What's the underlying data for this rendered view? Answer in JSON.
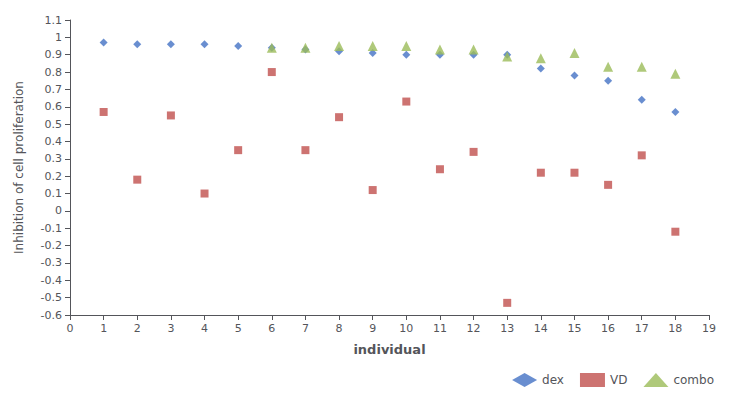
{
  "chart_data": {
    "type": "scatter",
    "xlabel": "individual",
    "ylabel": "Inhibition of cell proliferation",
    "series": [
      {
        "name": "dex",
        "color": "#4472C4",
        "marker": "diamond",
        "x": [
          1,
          2,
          3,
          4,
          5,
          6,
          7,
          8,
          9,
          10,
          11,
          12,
          13,
          14,
          15,
          16,
          17,
          18
        ],
        "values": [
          0.97,
          0.96,
          0.96,
          0.96,
          0.95,
          0.94,
          0.93,
          0.92,
          0.91,
          0.9,
          0.9,
          0.9,
          0.9,
          0.82,
          0.78,
          0.75,
          0.64,
          0.57
        ]
      },
      {
        "name": "VD",
        "color": "#C0504D",
        "marker": "square",
        "x": [
          1,
          2,
          3,
          4,
          5,
          6,
          7,
          8,
          9,
          10,
          11,
          12,
          13,
          14,
          15,
          16,
          17,
          18
        ],
        "values": [
          0.57,
          0.18,
          0.55,
          0.1,
          0.35,
          0.8,
          0.35,
          0.54,
          0.12,
          0.63,
          0.24,
          0.34,
          -0.53,
          0.22,
          0.22,
          0.15,
          0.32,
          -0.12
        ]
      },
      {
        "name": "combo",
        "color": "#9BBB59",
        "marker": "triangle",
        "x": [
          6,
          7,
          8,
          9,
          10,
          11,
          12,
          13,
          14,
          15,
          16,
          17,
          18
        ],
        "values": [
          0.94,
          0.94,
          0.95,
          0.95,
          0.95,
          0.93,
          0.93,
          0.89,
          0.88,
          0.91,
          0.83,
          0.83,
          0.79
        ]
      }
    ],
    "xlim": [
      0,
      19
    ],
    "ylim": [
      -0.6,
      1.1
    ],
    "xticks": [
      0,
      1,
      2,
      3,
      4,
      5,
      6,
      7,
      8,
      9,
      10,
      11,
      12,
      13,
      14,
      15,
      16,
      17,
      18,
      19
    ],
    "yticks": [
      1.1,
      1.0,
      0.9,
      0.8,
      0.7,
      0.6,
      0.5,
      0.4,
      0.3,
      0.2,
      0.1,
      0.0,
      -0.1,
      -0.2,
      -0.3,
      -0.4,
      -0.5,
      -0.6
    ],
    "grid": false,
    "legend": "lower right"
  }
}
